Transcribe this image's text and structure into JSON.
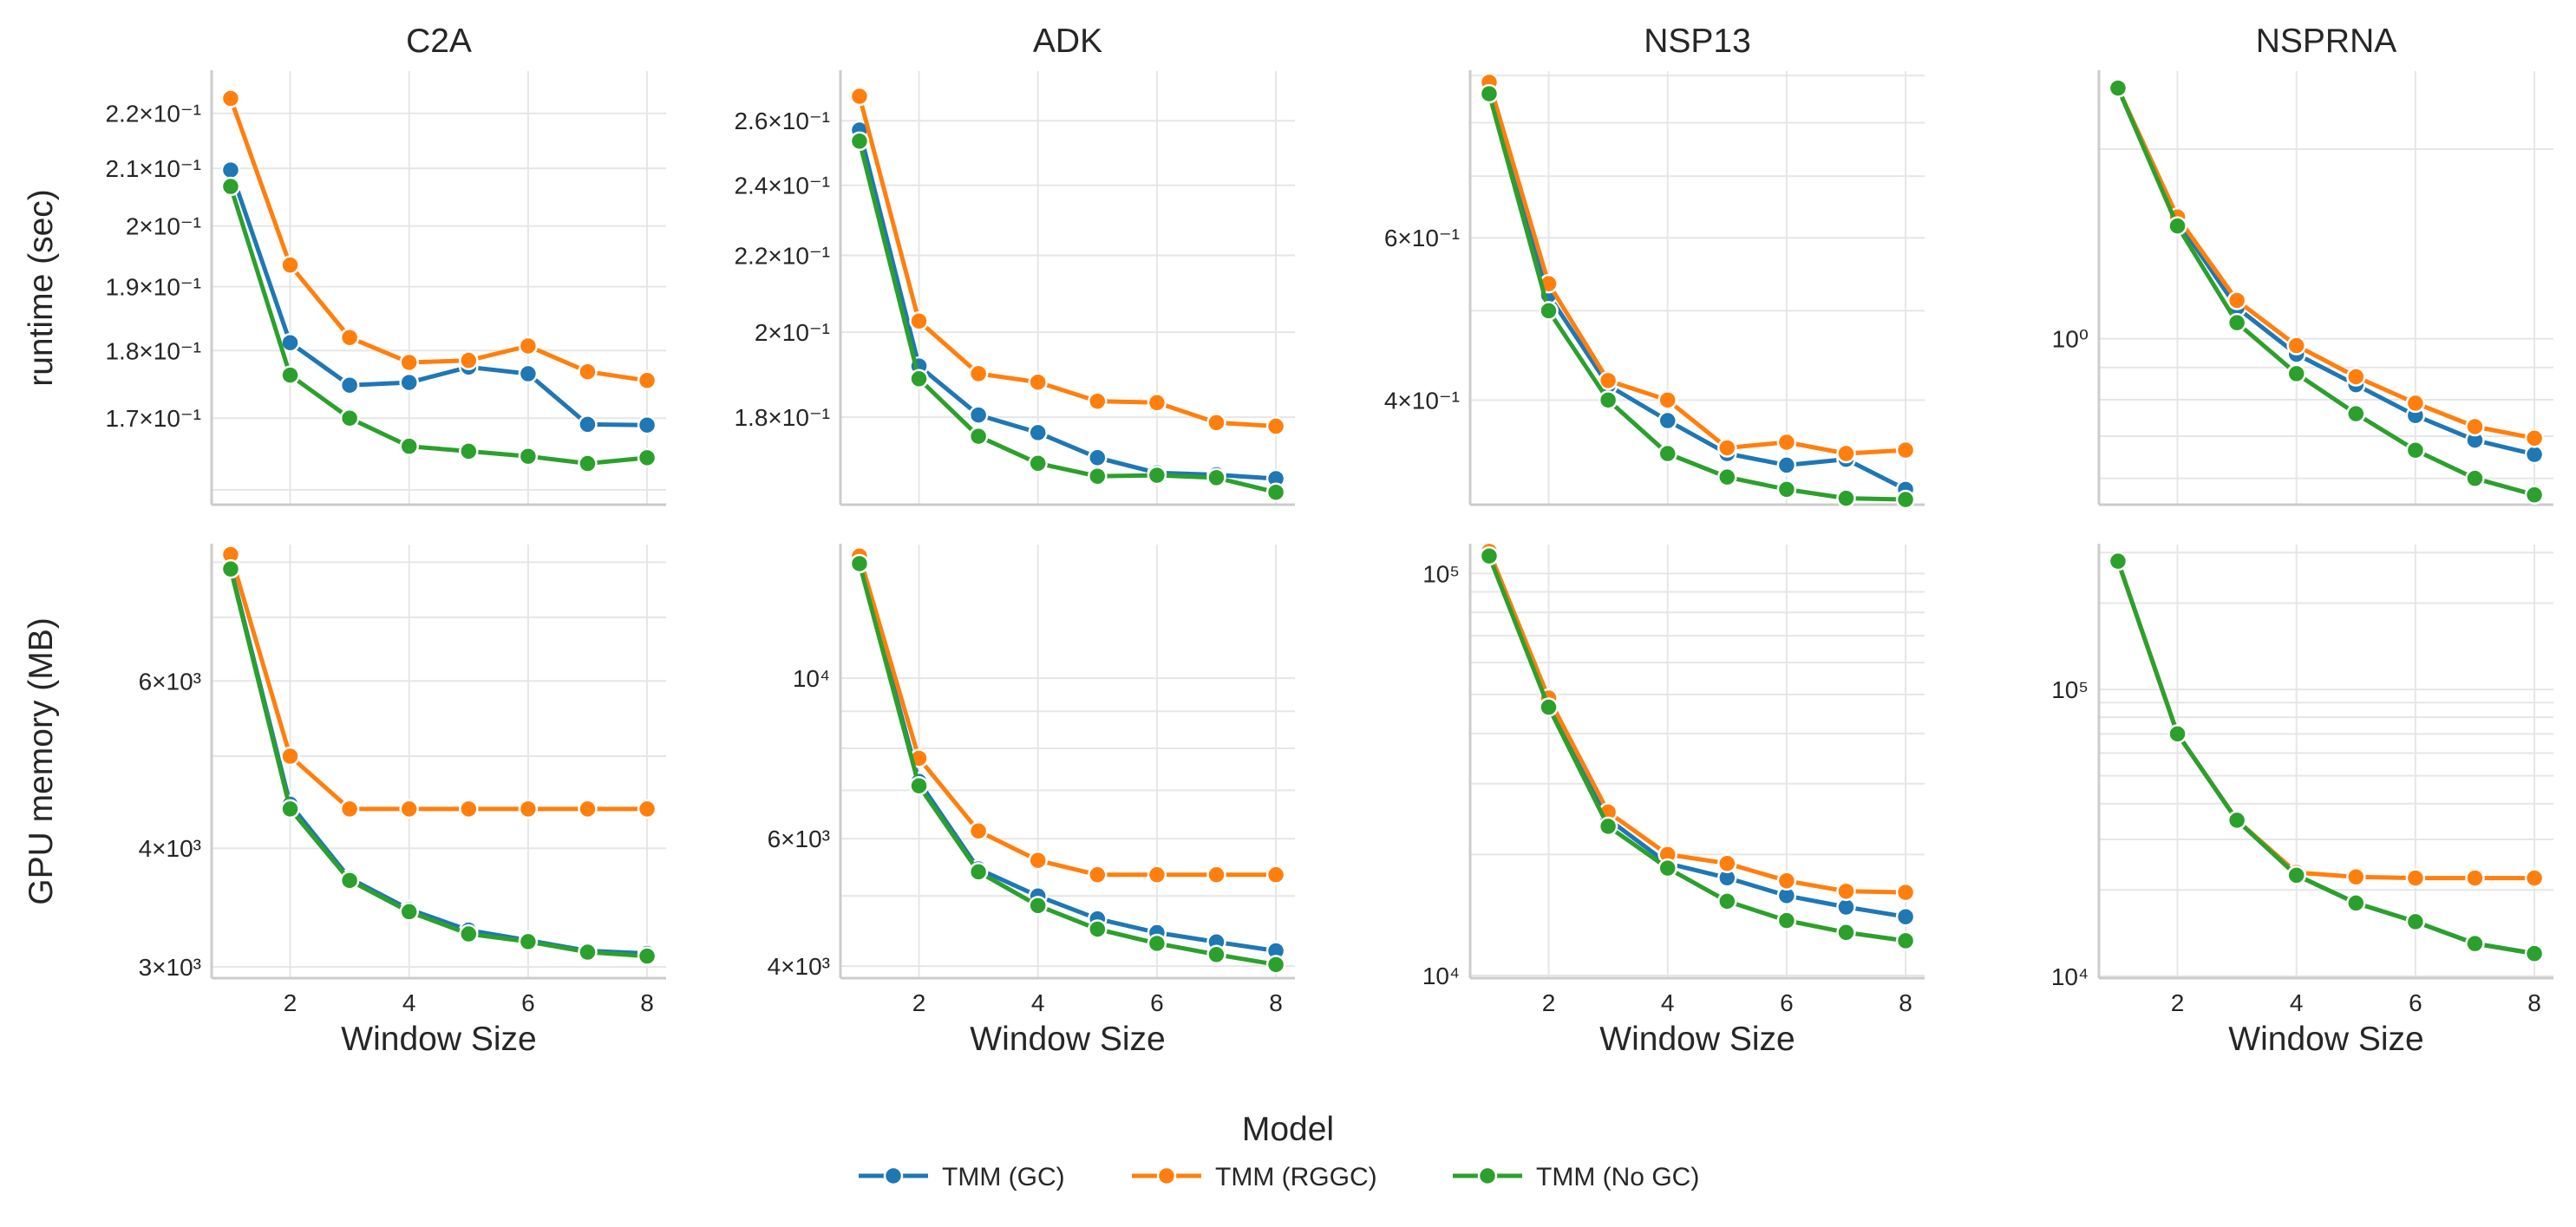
{
  "chart_data": {
    "type": "line",
    "x": [
      1,
      2,
      3,
      4,
      5,
      6,
      7,
      8
    ],
    "xlabel": "Window Size",
    "x_ticks": [
      2,
      4,
      6,
      8
    ],
    "y_scale": "log",
    "legend": {
      "title": "Model",
      "placement": "bottom-center",
      "entries": [
        {
          "name": "TMM (GC)",
          "color": "#1f77b4"
        },
        {
          "name": "TMM (RGGC)",
          "color": "#ff7f0e"
        },
        {
          "name": "TMM (No GC)",
          "color": "#2ca02c"
        }
      ]
    },
    "columns": [
      "C2A",
      "ADK",
      "NSP13",
      "NSPRNA"
    ],
    "rows": [
      {
        "ylabel": "runtime (sec)",
        "metric": "runtime"
      },
      {
        "ylabel": "GPU memory (MB)",
        "metric": "gpu_memory"
      }
    ],
    "panels": [
      {
        "title": "C2A",
        "ylabel": "runtime (sec)",
        "ylim": [
          0.158,
          0.228
        ],
        "yticks": [
          {
            "value": 0.22,
            "label": "2.2×10⁻¹"
          },
          {
            "value": 0.21,
            "label": "2.1×10⁻¹"
          },
          {
            "value": 0.2,
            "label": "2×10⁻¹"
          },
          {
            "value": 0.19,
            "label": "1.9×10⁻¹"
          },
          {
            "value": 0.18,
            "label": "1.8×10⁻¹"
          },
          {
            "value": 0.17,
            "label": "1.7×10⁻¹"
          }
        ],
        "minor_gridlines": [
          0.16
        ],
        "series": [
          {
            "name": "TMM (GC)",
            "values": [
              0.2097,
              0.1812,
              0.1748,
              0.1752,
              0.1775,
              0.1765,
              0.1691,
              0.169
            ]
          },
          {
            "name": "TMM (RGGC)",
            "values": [
              0.2228,
              0.1935,
              0.182,
              0.1782,
              0.1785,
              0.1807,
              0.1768,
              0.1755
            ]
          },
          {
            "name": "TMM (No GC)",
            "values": [
              0.2068,
              0.1763,
              0.17,
              0.166,
              0.1653,
              0.1646,
              0.1636,
              0.1644
            ]
          }
        ]
      },
      {
        "title": "ADK",
        "ylabel": "",
        "ylim": [
          0.1615,
          0.2765
        ],
        "yticks": [
          {
            "value": 0.26,
            "label": "2.6×10⁻¹"
          },
          {
            "value": 0.24,
            "label": "2.4×10⁻¹"
          },
          {
            "value": 0.22,
            "label": "2.2×10⁻¹"
          },
          {
            "value": 0.2,
            "label": "2×10⁻¹"
          },
          {
            "value": 0.18,
            "label": "1.8×10⁻¹"
          }
        ],
        "minor_gridlines": [],
        "series": [
          {
            "name": "TMM (GC)",
            "values": [
              0.257,
              0.1918,
              0.1805,
              0.1766,
              0.1712,
              0.168,
              0.1676,
              0.1668
            ]
          },
          {
            "name": "TMM (RGGC)",
            "values": [
              0.268,
              0.2028,
              0.19,
              0.188,
              0.1836,
              0.1833,
              0.1788,
              0.178
            ]
          },
          {
            "name": "TMM (No GC)",
            "values": [
              0.2535,
              0.1888,
              0.1758,
              0.17,
              0.1673,
              0.1675,
              0.167,
              0.164
            ]
          }
        ]
      },
      {
        "title": "NSP13",
        "ylabel": "",
        "ylim": [
          0.308,
          0.91
        ],
        "yticks": [
          {
            "value": 0.6,
            "label": "6×10⁻¹"
          },
          {
            "value": 0.4,
            "label": "4×10⁻¹"
          }
        ],
        "minor_gridlines": [
          0.5,
          0.7,
          0.8,
          0.9
        ],
        "series": [
          {
            "name": "TMM (GC)",
            "values": [
              0.875,
              0.52,
              0.415,
              0.38,
              0.35,
              0.34,
              0.345,
              0.32
            ]
          },
          {
            "name": "TMM (RGGC)",
            "values": [
              0.885,
              0.535,
              0.42,
              0.4,
              0.355,
              0.36,
              0.35,
              0.353
            ]
          },
          {
            "name": "TMM (No GC)",
            "values": [
              0.86,
              0.5,
              0.4,
              0.35,
              0.33,
              0.32,
              0.313,
              0.312
            ]
          }
        ]
      },
      {
        "title": "NSPRNA",
        "ylabel": "",
        "ylim": [
          0.545,
          2.66
        ],
        "yticks": [
          {
            "value": 1.0,
            "label": "10⁰"
          }
        ],
        "minor_gridlines": [
          0.6,
          0.7,
          0.8,
          0.9,
          2.0
        ],
        "series": [
          {
            "name": "TMM (GC)",
            "values": [
              2.5,
              1.54,
              1.12,
              0.945,
              0.845,
              0.755,
              0.69,
              0.655
            ]
          },
          {
            "name": "TMM (RGGC)",
            "values": [
              2.5,
              1.56,
              1.15,
              0.975,
              0.87,
              0.79,
              0.725,
              0.695
            ]
          },
          {
            "name": "TMM (No GC)",
            "values": [
              2.5,
              1.51,
              1.06,
              0.88,
              0.76,
              0.665,
              0.6,
              0.565
            ]
          }
        ]
      },
      {
        "title": "",
        "ylabel": "GPU memory (MB)",
        "ylim": [
          2920,
          8350
        ],
        "yticks": [
          {
            "value": 6000,
            "label": "6×10³"
          },
          {
            "value": 4000,
            "label": "4×10³"
          },
          {
            "value": 3000,
            "label": "3×10³"
          }
        ],
        "minor_gridlines": [
          5000,
          7000,
          8000
        ],
        "series": [
          {
            "name": "TMM (GC)",
            "values": [
              7900,
              4450,
              3720,
              3450,
              3280,
              3200,
              3120,
              3100
            ]
          },
          {
            "name": "TMM (RGGC)",
            "values": [
              8150,
              5000,
              4400,
              4400,
              4400,
              4400,
              4400,
              4400
            ]
          },
          {
            "name": "TMM (No GC)",
            "values": [
              7870,
              4400,
              3700,
              3430,
              3250,
              3190,
              3110,
              3080
            ]
          }
        ]
      },
      {
        "title": "",
        "ylabel": "",
        "ylim": [
          3850,
          15300
        ],
        "yticks": [
          {
            "value": 10000,
            "label": "10⁴"
          },
          {
            "value": 6000,
            "label": "6×10³"
          },
          {
            "value": 4000,
            "label": "4×10³"
          }
        ],
        "minor_gridlines": [
          5000,
          7000,
          8000,
          9000
        ],
        "series": [
          {
            "name": "TMM (GC)",
            "values": [
              14600,
              7200,
              5450,
              5000,
              4650,
              4450,
              4320,
              4200
            ]
          },
          {
            "name": "TMM (RGGC)",
            "values": [
              14750,
              7750,
              6150,
              5600,
              5350,
              5350,
              5350,
              5350
            ]
          },
          {
            "name": "TMM (No GC)",
            "values": [
              14400,
              7100,
              5400,
              4850,
              4500,
              4300,
              4150,
              4020
            ]
          }
        ]
      },
      {
        "title": "",
        "ylabel": "",
        "ylim": [
          9850,
          118000
        ],
        "yticks": [
          {
            "value": 100000,
            "label": "10⁵"
          },
          {
            "value": 10000,
            "label": "10⁴"
          }
        ],
        "minor_gridlines": [
          20000,
          30000,
          40000,
          50000,
          60000,
          70000,
          80000,
          90000
        ],
        "series": [
          {
            "name": "TMM (GC)",
            "values": [
              112000,
              48000,
              24500,
              19000,
              17500,
              15800,
              14800,
              14000
            ]
          },
          {
            "name": "TMM (RGGC)",
            "values": [
              113500,
              49000,
              25500,
              20000,
              19000,
              17200,
              16200,
              16100
            ]
          },
          {
            "name": "TMM (No GC)",
            "values": [
              110500,
              46500,
              23500,
              18500,
              15300,
              13700,
              12800,
              12200
            ]
          }
        ]
      },
      {
        "title": "",
        "ylabel": "",
        "ylim": [
          9850,
          320000
        ],
        "yticks": [
          {
            "value": 100000,
            "label": "10⁵"
          },
          {
            "value": 10000,
            "label": "10⁴"
          }
        ],
        "minor_gridlines": [
          20000,
          30000,
          40000,
          50000,
          60000,
          70000,
          80000,
          90000,
          200000,
          300000
        ],
        "series": [
          {
            "name": "TMM (GC)",
            "values": [
              280000,
              70000,
              35000,
              22500,
              18000,
              15500,
              13000,
              12000
            ]
          },
          {
            "name": "TMM (RGGC)",
            "values": [
              280000,
              70000,
              35000,
              23000,
              22200,
              22000,
              22000,
              22000
            ]
          },
          {
            "name": "TMM (No GC)",
            "values": [
              280000,
              70000,
              35000,
              22500,
              18000,
              15500,
              13000,
              12000
            ]
          }
        ]
      }
    ]
  }
}
